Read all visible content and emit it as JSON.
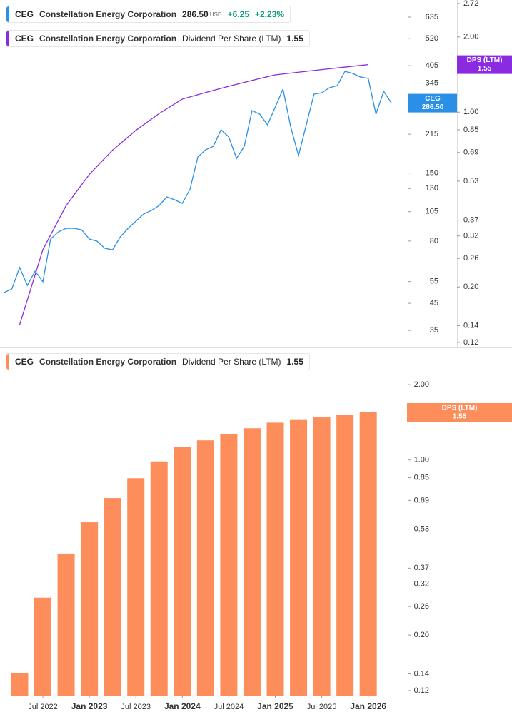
{
  "chart_data": [
    {
      "type": "line",
      "log": true,
      "xlim": [
        "2022-01",
        "2026-05"
      ],
      "ylim": [
        29.9,
        744
      ],
      "yticks": [
        35,
        45,
        55,
        80,
        105,
        130,
        150,
        215,
        345,
        405,
        520,
        635
      ],
      "y2lim": [
        0.1146,
        2.81
      ],
      "y2ticks": [
        2.72,
        {
          "value": 2,
          "label": "2.00"
        },
        {
          "value": 1,
          "label": "1.00"
        },
        0.85,
        0.69,
        0.53,
        0.37,
        0.32,
        0.26,
        {
          "value": 0.2,
          "label": "0.20"
        },
        0.14,
        0.12
      ],
      "series": [
        {
          "ticker": "CEG",
          "name": "Constellation Energy Corporation",
          "color": "#2a8fe6",
          "axis": "y",
          "last_label": "286.50",
          "currency": "USD",
          "change": "+6.25",
          "change_pct": "+2.23%",
          "x": [
            "2022-02",
            "2022-03",
            "2022-04",
            "2022-05",
            "2022-06",
            "2022-07",
            "2022-08",
            "2022-09",
            "2022-10",
            "2022-11",
            "2022-12",
            "2023-01",
            "2023-02",
            "2023-03",
            "2023-04",
            "2023-05",
            "2023-06",
            "2023-07",
            "2023-08",
            "2023-09",
            "2023-10",
            "2023-11",
            "2023-12",
            "2024-01",
            "2024-02",
            "2024-03",
            "2024-04",
            "2024-05",
            "2024-06",
            "2024-07",
            "2024-08",
            "2024-09",
            "2024-10",
            "2024-11",
            "2024-12",
            "2025-01",
            "2025-02",
            "2025-03",
            "2025-04",
            "2025-05",
            "2025-06",
            "2025-07",
            "2025-08",
            "2025-09",
            "2025-10",
            "2025-11",
            "2025-12",
            "2026-01",
            "2026-02",
            "2026-03",
            "2026-04"
          ],
          "values": [
            49.7,
            51.4,
            62.6,
            53.1,
            60.6,
            54.9,
            81.5,
            87.1,
            90.0,
            90.0,
            88.8,
            81.5,
            79.9,
            74.8,
            73.8,
            83.2,
            90.0,
            96.1,
            102.7,
            106.1,
            111.1,
            120.3,
            117.2,
            113.3,
            129.4,
            174.1,
            186.0,
            192.2,
            223.8,
            209.5,
            171.9,
            192.2,
            267.4,
            258.7,
            234.3,
            276.4,
            325.9,
            229.7,
            176.4,
            234.3,
            311.3,
            315.3,
            330.4,
            336.9,
            384.4,
            377.0,
            364.9,
            359.9,
            258.7,
            319.7,
            286.5
          ]
        },
        {
          "ticker": "CEG",
          "name": "Constellation Energy Corporation",
          "metric": "Dividend Per Share (LTM)",
          "badge": "DPS (LTM)",
          "color": "#8a2be2",
          "axis": "y2",
          "last_label": "1.55",
          "x": [
            "2022-04",
            "2022-07",
            "2022-10",
            "2023-01",
            "2023-04",
            "2023-07",
            "2023-10",
            "2024-01",
            "2024-04",
            "2024-07",
            "2024-10",
            "2025-01",
            "2025-04",
            "2025-07",
            "2025-10",
            "2026-01"
          ],
          "values": [
            0.141,
            0.282,
            0.423,
            0.564,
            0.705,
            0.846,
            0.987,
            1.128,
            1.1985,
            1.269,
            1.3395,
            1.41,
            1.4449,
            1.4798,
            1.5147,
            1.5496
          ]
        }
      ]
    },
    {
      "type": "bar",
      "log": true,
      "xlim": [
        "2022-01",
        "2026-05"
      ],
      "ylim": [
        0.1146,
        2.797
      ],
      "yticks": [
        {
          "value": 2,
          "label": "2.00"
        },
        {
          "value": 1,
          "label": "1.00"
        },
        0.85,
        0.69,
        0.53,
        0.37,
        0.32,
        0.26,
        {
          "value": 0.2,
          "label": "0.20"
        },
        0.14,
        0.12
      ],
      "xticks": [
        {
          "value": "2022-07",
          "label": "Jul 2022"
        },
        {
          "value": "2023-01",
          "label": "Jan 2023"
        },
        {
          "value": "2023-07",
          "label": "Jul 2023"
        },
        {
          "value": "2024-01",
          "label": "Jan 2024"
        },
        {
          "value": "2024-07",
          "label": "Jul 2024"
        },
        {
          "value": "2025-01",
          "label": "Jan 2025"
        },
        {
          "value": "2025-07",
          "label": "Jul 2025"
        },
        {
          "value": "2026-01",
          "label": "Jan 2026"
        }
      ],
      "series": [
        {
          "ticker": "CEG",
          "name": "Constellation Energy Corporation",
          "metric": "Dividend Per Share (LTM)",
          "badge": "DPS (LTM)",
          "color": "#fd8d5a",
          "axis": "y",
          "last_label": "1.55",
          "x": [
            "2022-04",
            "2022-07",
            "2022-10",
            "2023-01",
            "2023-04",
            "2023-07",
            "2023-10",
            "2024-01",
            "2024-04",
            "2024-07",
            "2024-10",
            "2025-01",
            "2025-04",
            "2025-07",
            "2025-10",
            "2026-01"
          ],
          "values": [
            0.141,
            0.282,
            0.423,
            0.564,
            0.705,
            0.846,
            0.987,
            1.128,
            1.1985,
            1.269,
            1.3395,
            1.41,
            1.4449,
            1.4798,
            1.5147,
            1.5496
          ]
        }
      ]
    }
  ]
}
